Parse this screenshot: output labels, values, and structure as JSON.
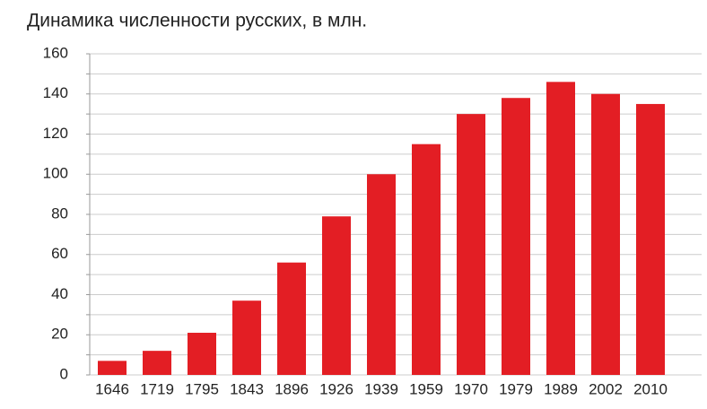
{
  "chart_data": {
    "type": "bar",
    "title": "Динамика численности русских, в млн.",
    "categories": [
      "1646",
      "1719",
      "1795",
      "1843",
      "1896",
      "1926",
      "1939",
      "1959",
      "1970",
      "1979",
      "1989",
      "2002",
      "2010"
    ],
    "values": [
      7,
      12,
      21,
      37,
      56,
      79,
      100,
      115,
      130,
      138,
      146,
      140,
      135
    ],
    "color": "#e31e24",
    "ylim": [
      0,
      160
    ],
    "yticks": [
      0,
      20,
      40,
      60,
      80,
      100,
      120,
      140,
      160
    ],
    "minor_yticks": [
      10,
      30,
      50,
      70,
      90,
      110,
      130,
      150
    ],
    "grid": true
  }
}
